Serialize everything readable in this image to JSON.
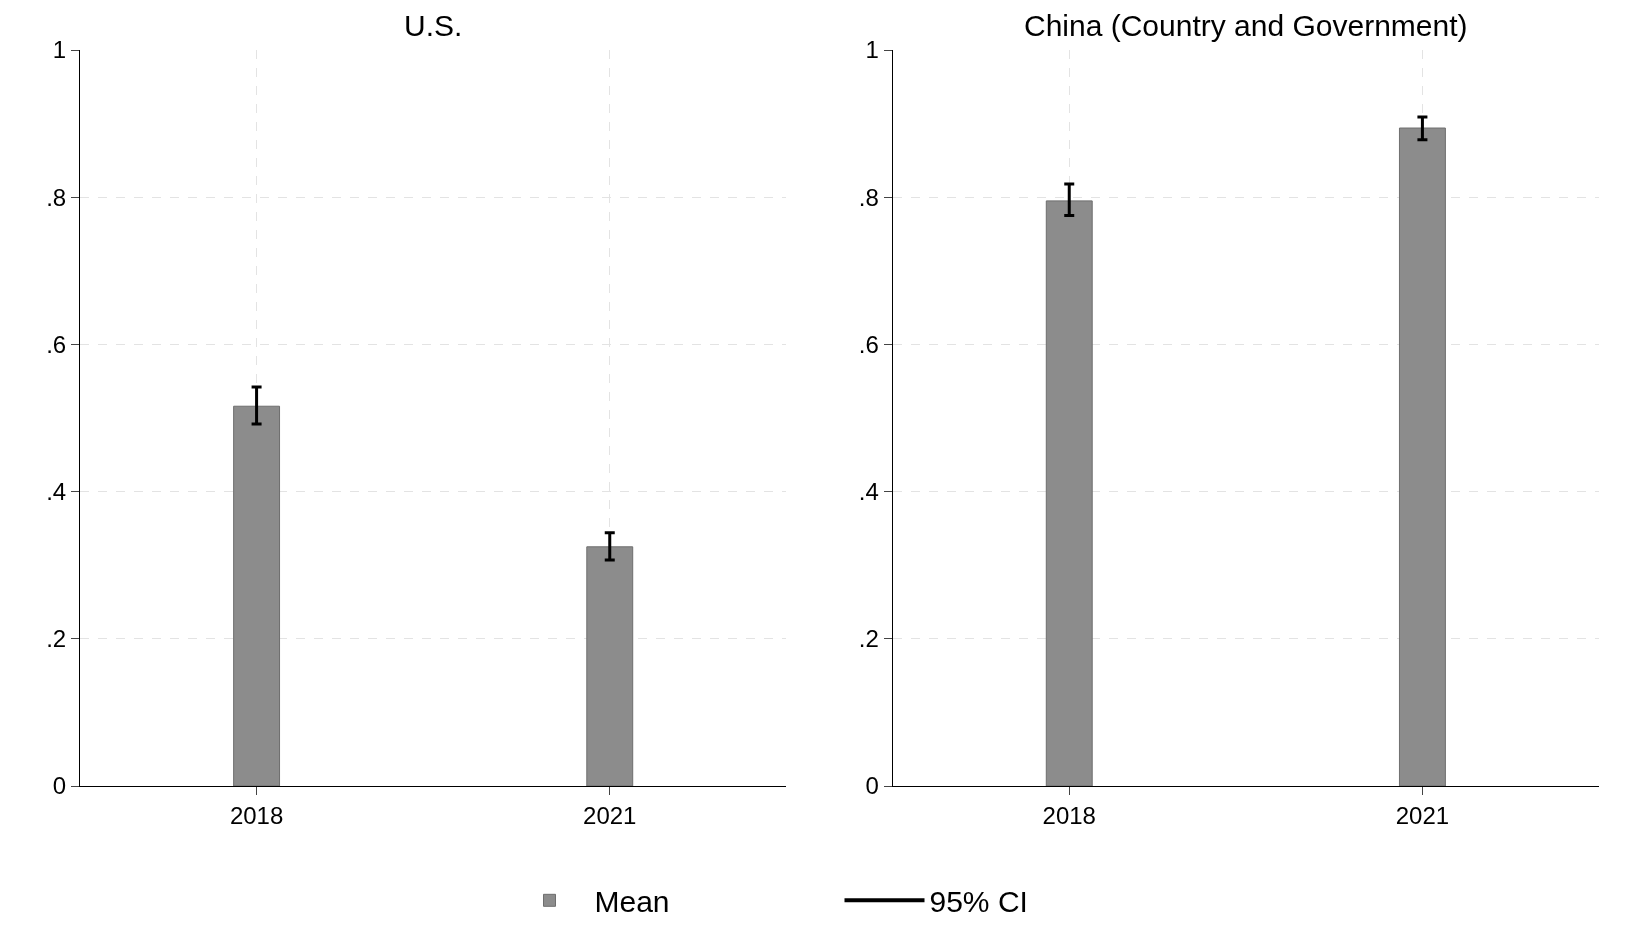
{
  "chart_data": [
    {
      "type": "bar",
      "title": "U.S.",
      "categories": [
        "2018",
        "2021"
      ],
      "series": [
        {
          "name": "Mean",
          "color": "#8c8c8c",
          "values": [
            0.516,
            0.325
          ],
          "errors": [
            [
              0.492,
              0.542
            ],
            [
              0.307,
              0.344
            ]
          ]
        }
      ],
      "ylim": [
        0,
        1
      ],
      "yticks": [
        {
          "value": 0,
          "label": "0"
        },
        {
          "value": 0.2,
          "label": ".2"
        },
        {
          "value": 0.4,
          "label": ".4"
        },
        {
          "value": 0.6,
          "label": ".6"
        },
        {
          "value": 0.8,
          "label": ".8"
        },
        {
          "value": 1,
          "label": "1"
        }
      ],
      "grid": true,
      "legend": "bottom",
      "annotations": [
        "95% CI"
      ]
    },
    {
      "type": "bar",
      "title": "China (Country and Government)",
      "categories": [
        "2018",
        "2021"
      ],
      "series": [
        {
          "color": "#8c8c8c",
          "values": [
            0.795,
            0.894
          ],
          "errors": [
            [
              0.775,
              0.818
            ],
            [
              0.878,
              0.909
            ]
          ]
        }
      ],
      "ylim": [
        0,
        1
      ],
      "yticks": [
        {
          "value": 0,
          "label": "0"
        },
        {
          "value": 0.2,
          "label": ".2"
        },
        {
          "value": 0.4,
          "label": ".4"
        },
        {
          "value": 0.6,
          "label": ".6"
        },
        {
          "value": 0.8,
          "label": ".8"
        },
        {
          "value": 1,
          "label": "1"
        }
      ],
      "grid": true
    }
  ]
}
